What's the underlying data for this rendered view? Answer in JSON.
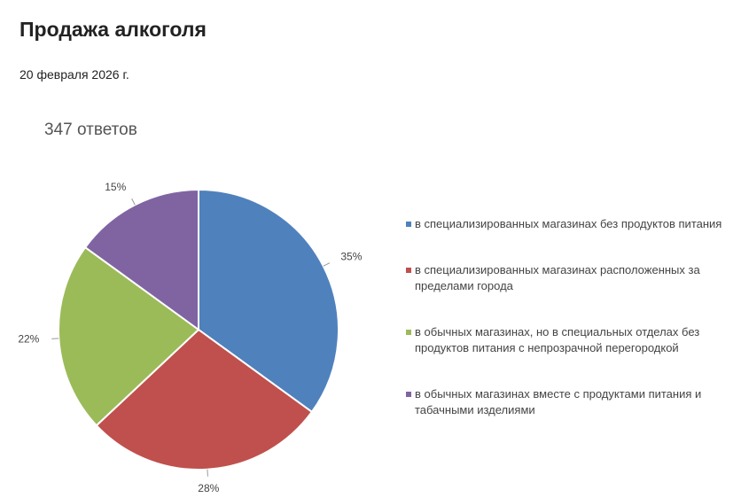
{
  "page": {
    "title": "Продажа алкоголя",
    "date": "20 февраля 2026 г."
  },
  "chart_data": {
    "type": "pie",
    "title": "347 ответов",
    "categories": [
      "в специализированных магазинах без продуктов питания",
      "в специализированных магазинах расположенных за пределами города",
      "в обычных магазинах, но в специальных отделах без продуктов питания с непрозрачной перегородкой",
      "в обычных магазинах вместе с продуктами питания и табачными изделиями"
    ],
    "values": [
      35,
      28,
      22,
      15
    ],
    "value_labels": [
      "35%",
      "28%",
      "22%",
      "15%"
    ],
    "colors": [
      "#4f81bd",
      "#c0504d",
      "#9bbb59",
      "#8064a2"
    ],
    "legend": "right"
  }
}
